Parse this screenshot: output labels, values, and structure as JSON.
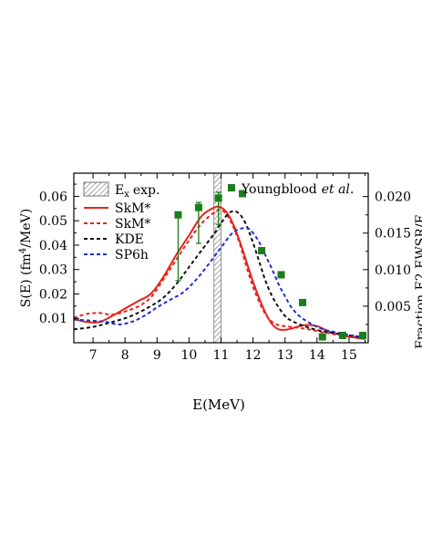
{
  "chart_data": {
    "type": "line",
    "title": "",
    "xlabel": "E(MeV)",
    "ylabel": {
      "main": "S(E) (fm",
      "sup": "4",
      "tail": "/MeV)"
    },
    "y2label": "Fraction E2 EWSR/E",
    "xlim": [
      6.4,
      15.6
    ],
    "ylim": [
      0.0,
      0.0695
    ],
    "y2lim": [
      0.0,
      0.0232
    ],
    "xticks": [
      "7",
      "8",
      "9",
      "10",
      "11",
      "12",
      "13",
      "14",
      "15"
    ],
    "yticks": [
      "0.01",
      "0.02",
      "0.03",
      "0.04",
      "0.05",
      "0.06"
    ],
    "y2ticks": [
      "0.005",
      "0.010",
      "0.015",
      "0.020"
    ],
    "band": {
      "label": "exp.",
      "label_var": "E",
      "label_sub": "x",
      "x_range": [
        10.78,
        11.0
      ]
    },
    "series": [
      {
        "name": "SkM*",
        "color": "#e8231b",
        "dash": "solid",
        "x": [
          6.4,
          6.8,
          7.2,
          7.6,
          8.0,
          8.4,
          8.8,
          9.2,
          9.6,
          10.0,
          10.4,
          10.8,
          11.0,
          11.2,
          11.4,
          11.6,
          11.8,
          12.0,
          12.2,
          12.4,
          12.6,
          12.8,
          13.0,
          13.2,
          13.6,
          14.0,
          14.4,
          15.0,
          15.5
        ],
        "values": [
          0.0098,
          0.0085,
          0.0085,
          0.011,
          0.014,
          0.017,
          0.02,
          0.027,
          0.036,
          0.044,
          0.052,
          0.0555,
          0.0555,
          0.053,
          0.048,
          0.041,
          0.033,
          0.025,
          0.018,
          0.012,
          0.0075,
          0.0055,
          0.0053,
          0.0058,
          0.0072,
          0.0068,
          0.0045,
          0.0025,
          0.0015
        ]
      },
      {
        "name": "SkM*",
        "color": "#e8231b",
        "dash": "dashed",
        "x": [
          6.4,
          6.8,
          7.2,
          7.6,
          8.0,
          8.4,
          8.8,
          9.2,
          9.6,
          10.0,
          10.4,
          10.8,
          11.0,
          11.2,
          11.4,
          11.6,
          11.8,
          12.0,
          12.2,
          12.4,
          12.6,
          12.8,
          13.0,
          13.2,
          13.6,
          14.0,
          14.4,
          15.0,
          15.5
        ],
        "values": [
          0.0102,
          0.0118,
          0.0122,
          0.0115,
          0.0128,
          0.0148,
          0.0185,
          0.026,
          0.034,
          0.042,
          0.049,
          0.0535,
          0.0545,
          0.052,
          0.047,
          0.04,
          0.031,
          0.023,
          0.0165,
          0.0115,
          0.0085,
          0.0072,
          0.0068,
          0.0065,
          0.0058,
          0.0048,
          0.0038,
          0.0025,
          0.0018
        ]
      },
      {
        "name": "KDE",
        "color": "#111111",
        "dash": "dashed",
        "x": [
          6.4,
          7.0,
          7.6,
          8.2,
          8.8,
          9.2,
          9.6,
          10.0,
          10.4,
          10.8,
          11.0,
          11.2,
          11.4,
          11.6,
          11.8,
          12.0,
          12.2,
          12.4,
          12.6,
          12.8,
          13.0,
          13.2,
          13.6,
          14.0,
          14.4,
          15.0,
          15.5
        ],
        "values": [
          0.0055,
          0.0065,
          0.0085,
          0.011,
          0.015,
          0.0185,
          0.024,
          0.031,
          0.038,
          0.045,
          0.049,
          0.0525,
          0.054,
          0.0525,
          0.048,
          0.041,
          0.033,
          0.025,
          0.019,
          0.0145,
          0.011,
          0.009,
          0.0068,
          0.0052,
          0.0042,
          0.003,
          0.002
        ]
      },
      {
        "name": "SP6h",
        "color": "#1f2ed0",
        "dash": "dashed",
        "x": [
          6.4,
          7.0,
          7.4,
          7.8,
          8.2,
          8.6,
          9.0,
          9.4,
          9.8,
          10.2,
          10.6,
          11.0,
          11.4,
          11.8,
          12.0,
          12.2,
          12.4,
          12.6,
          12.8,
          13.0,
          13.2,
          13.4,
          13.6,
          14.0,
          14.4,
          15.0,
          15.5
        ],
        "values": [
          0.0095,
          0.009,
          0.0085,
          0.0075,
          0.0085,
          0.011,
          0.0145,
          0.0175,
          0.0205,
          0.0255,
          0.032,
          0.039,
          0.0455,
          0.047,
          0.045,
          0.041,
          0.0355,
          0.03,
          0.024,
          0.019,
          0.0145,
          0.0115,
          0.0095,
          0.0065,
          0.0048,
          0.0032,
          0.0022
        ]
      }
    ],
    "exp_points": {
      "name": "Youngblood",
      "name_suffix": "et al.",
      "color": "#1a7d1a",
      "x": [
        9.66,
        10.3,
        10.92,
        11.67,
        12.27,
        12.88,
        13.55,
        14.17,
        14.8,
        15.43
      ],
      "values": [
        0.0175,
        0.0185,
        0.0198,
        0.0204,
        0.0126,
        0.0093,
        0.0055,
        0.0008,
        0.001,
        0.001
      ],
      "err_lo": [
        0.0085,
        0.0136,
        0.0162,
        null,
        null,
        null,
        null,
        null,
        null,
        null
      ],
      "err_hi": [
        null,
        0.0192,
        0.0206,
        null,
        null,
        null,
        null,
        null,
        null,
        null
      ]
    },
    "legend_position": "top"
  }
}
